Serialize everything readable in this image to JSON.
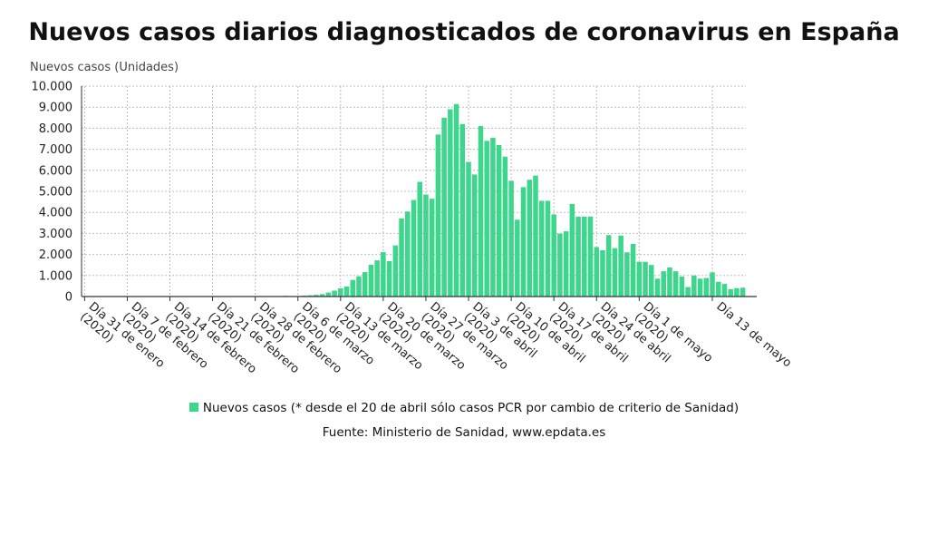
{
  "title": "Nuevos casos diarios diagnosticados de coronavirus en España",
  "legend_label": "Nuevos casos (* desde el 20 de abril sólo casos PCR por cambio de criterio de Sanidad)",
  "source": "Fuente: Ministerio de Sanidad, www.epdata.es",
  "colors": {
    "bar": "#3dd68c",
    "grid": "#bdbdbd",
    "axis": "#333333"
  },
  "chart_data": {
    "type": "bar",
    "title": "Nuevos casos diarios diagnosticados de coronavirus en España",
    "ylabel": "Nuevos casos (Unidades)",
    "xlabel": "",
    "ylim": [
      0,
      10000
    ],
    "yticks": [
      "0",
      "1.000",
      "2.000",
      "3.000",
      "4.000",
      "5.000",
      "6.000",
      "7.000",
      "8.000",
      "9.000",
      "10.000"
    ],
    "grid": true,
    "legend_position": "bottom",
    "x_start": "2020-01-31",
    "x_end": "2020-05-15",
    "xtick_labels": [
      [
        "Día 31 de enero",
        "(2020)"
      ],
      [
        "Día 7 de febrero",
        "(2020)"
      ],
      [
        "Día 14 de febrero",
        "(2020)"
      ],
      [
        "Día 21 de febrero",
        "(2020)"
      ],
      [
        "Día 28 de febrero",
        "(2020)"
      ],
      [
        "Día 6 de marzo",
        "(2020)"
      ],
      [
        "Día 13 de marzo",
        "(2020)"
      ],
      [
        "Día 20 de marzo",
        "(2020)"
      ],
      [
        "Día 27 de marzo",
        "(2020)"
      ],
      [
        "Día 3 de abril",
        "(2020)"
      ],
      [
        "Día 10 de abril",
        "(2020)"
      ],
      [
        "Día 17 de abril",
        "(2020)"
      ],
      [
        "Día 24 de abril",
        "(2020)"
      ],
      [
        "Día 1 de mayo",
        "(2020)"
      ],
      [
        "Día 13 de mayo"
      ]
    ],
    "series": [
      {
        "name": "Nuevos casos (* desde el 20 de abril sólo casos PCR por cambio de criterio de Sanidad)",
        "values": [
          1,
          0,
          0,
          0,
          0,
          0,
          0,
          0,
          0,
          1,
          0,
          0,
          0,
          0,
          0,
          0,
          0,
          0,
          0,
          0,
          0,
          0,
          0,
          0,
          1,
          3,
          2,
          6,
          7,
          9,
          14,
          18,
          15,
          32,
          17,
          16,
          45,
          59,
          80,
          114,
          190,
          280,
          390,
          480,
          790,
          960,
          1160,
          1510,
          1720,
          2110,
          1680,
          2430,
          3710,
          4040,
          4590,
          5450,
          4850,
          4650,
          7700,
          8500,
          8900,
          9150,
          8200,
          6400,
          5800,
          8100,
          7400,
          7550,
          7200,
          6650,
          5500,
          3650,
          5200,
          5550,
          5750,
          4550,
          4550,
          3900,
          2990,
          3100,
          4400,
          3800,
          3800,
          3800,
          2350,
          2200,
          2920,
          2300,
          2900,
          2100,
          2500,
          1650,
          1650,
          1500,
          850,
          1200,
          1380,
          1200,
          950,
          450,
          1000,
          850,
          880,
          1150,
          700,
          600,
          350,
          400,
          420
        ]
      }
    ]
  }
}
